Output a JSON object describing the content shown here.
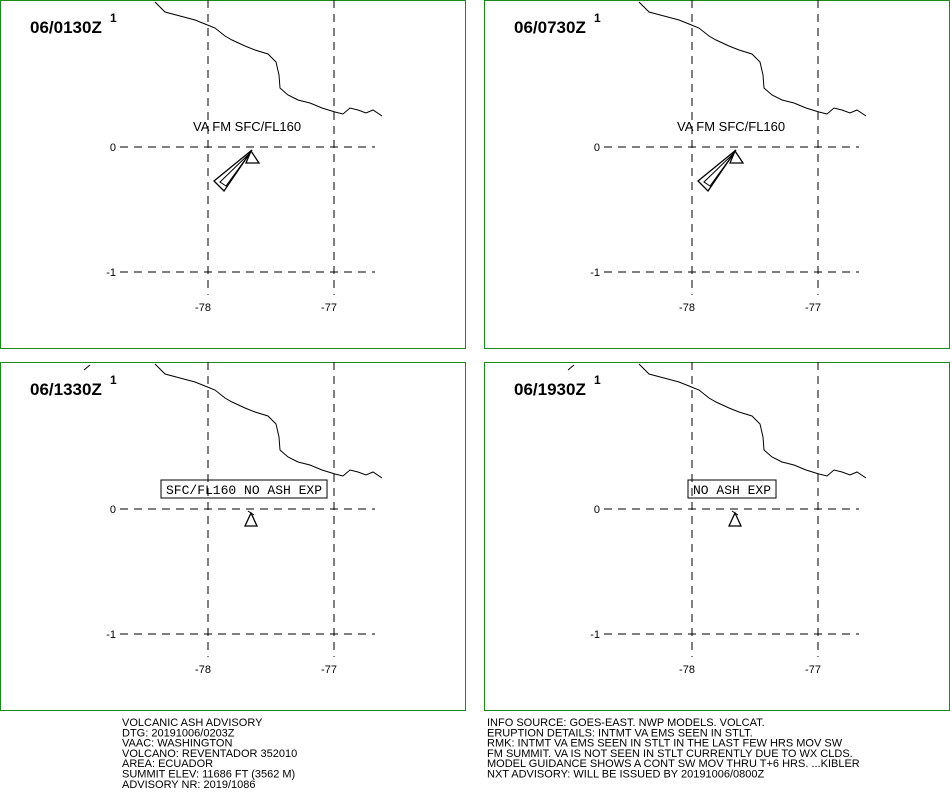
{
  "panels": [
    {
      "time": "06/0130Z",
      "sup": "1",
      "annotation": "VA FM SFC/FL160",
      "lat_labels": [
        "0",
        "-1"
      ],
      "lon_labels": [
        "-78",
        "-77"
      ]
    },
    {
      "time": "06/0730Z",
      "sup": "1",
      "annotation": "VA FM SFC/FL160",
      "lat_labels": [
        "0",
        "-1"
      ],
      "lon_labels": [
        "-78",
        "-77"
      ]
    },
    {
      "time": "06/1330Z",
      "sup": "1",
      "annotation": "SFC/FL160 NO ASH EXP",
      "lat_labels": [
        "0",
        "-1"
      ],
      "lon_labels": [
        "-78",
        "-77"
      ]
    },
    {
      "time": "06/1930Z",
      "sup": "1",
      "annotation": "NO ASH EXP",
      "lat_labels": [
        "0",
        "-1"
      ],
      "lon_labels": [
        "-78",
        "-77"
      ]
    }
  ],
  "advisory_left": [
    "VOLCANIC ASH ADVISORY",
    "DTG: 20191006/0203Z",
    "VAAC: WASHINGTON",
    "VOLCANO: REVENTADOR 352010",
    "AREA: ECUADOR",
    "SUMMIT ELEV: 11686 FT (3562 M)",
    "ADVISORY NR: 2019/1086"
  ],
  "advisory_right": [
    "INFO SOURCE: GOES-EAST. NWP MODELS. VOLCAT.",
    "ERUPTION DETAILS: INTMT VA EMS SEEN IN STLT.",
    "RMK: INTMT VA EMS SEEN IN STLT IN THE LAST FEW HRS MOV SW",
    "FM SUMMIT. VA IS NOT SEEN IN STLT CURRENTLY DUE TO WX CLDS.",
    "MODEL GUIDANCE SHOWS A CONT SW MOV THRU T+6 HRS. ...KIBLER",
    "NXT ADVISORY: WILL BE ISSUED BY 20191006/0800Z"
  ]
}
